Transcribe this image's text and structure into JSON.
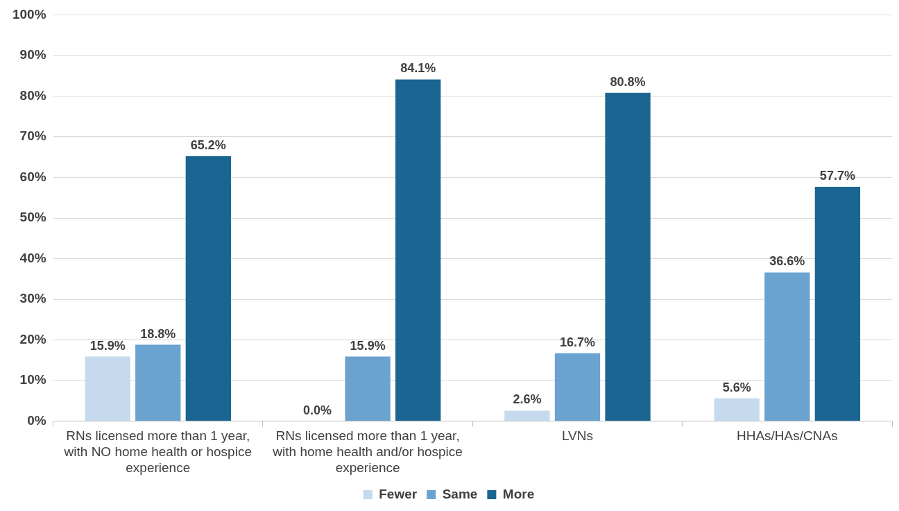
{
  "chart_data": {
    "type": "bar",
    "categories": [
      "RNs licensed more than 1 year, with NO home health or hospice experience",
      "RNs licensed more than 1 year, with home health and/or hospice experience",
      "LVNs",
      "HHAs/HAs/CNAs"
    ],
    "series": [
      {
        "name": "Fewer",
        "color": "#c5daee",
        "values": [
          15.9,
          0.0,
          2.6,
          5.6
        ]
      },
      {
        "name": "Same",
        "color": "#6aa2d0",
        "values": [
          18.8,
          15.9,
          16.7,
          36.6
        ]
      },
      {
        "name": "More",
        "color": "#1b6592",
        "values": [
          65.2,
          84.1,
          80.8,
          57.7
        ]
      }
    ],
    "value_labels": [
      [
        "15.9%",
        "0.0%",
        "2.6%",
        "5.6%"
      ],
      [
        "18.8%",
        "15.9%",
        "16.7%",
        "36.6%"
      ],
      [
        "65.2%",
        "84.1%",
        "80.8%",
        "57.7%"
      ]
    ],
    "ylim": [
      0,
      100
    ],
    "yticks": [
      {
        "value": 0,
        "label": "0%"
      },
      {
        "value": 10,
        "label": "10%"
      },
      {
        "value": 20,
        "label": "20%"
      },
      {
        "value": 30,
        "label": "30%"
      },
      {
        "value": 40,
        "label": "40%"
      },
      {
        "value": 50,
        "label": "50%"
      },
      {
        "value": 60,
        "label": "60%"
      },
      {
        "value": 70,
        "label": "70%"
      },
      {
        "value": 80,
        "label": "80%"
      },
      {
        "value": 90,
        "label": "90%"
      },
      {
        "value": 100,
        "label": "100%"
      }
    ],
    "grid": "y",
    "legend": "bottom"
  }
}
